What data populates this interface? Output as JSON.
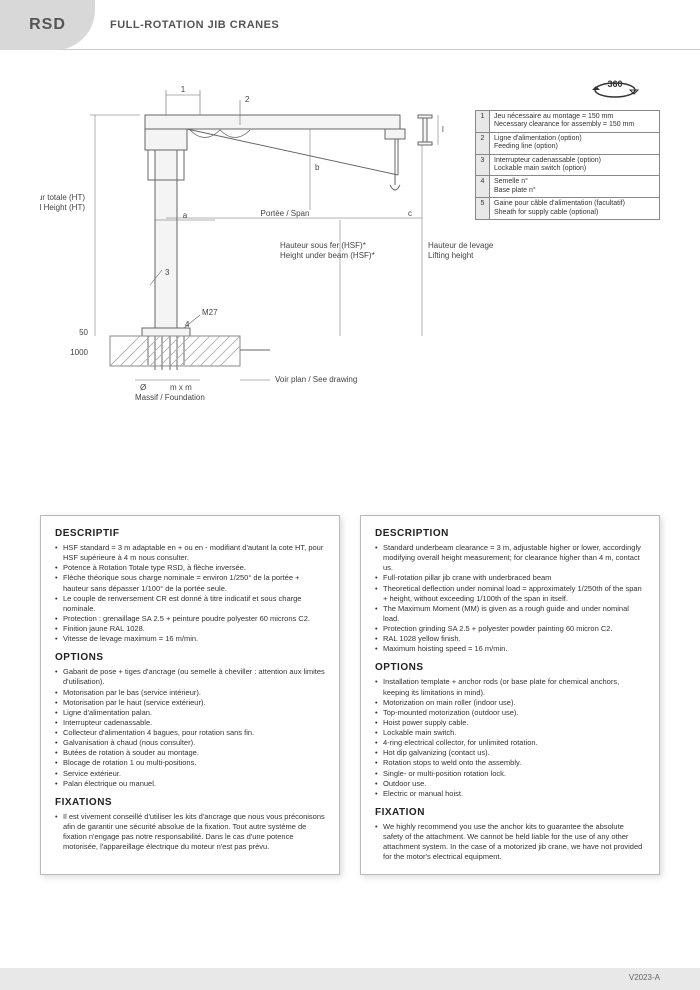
{
  "header": {
    "code": "RSD",
    "title": "FULL-ROTATION JIB CRANES"
  },
  "rotation_deg": "360",
  "diagram": {
    "labels": {
      "overall_height_fr": "Hauteur totale (HT)",
      "overall_height_en": "Overall Height (HT)",
      "span_fr": "Portée / Span",
      "hsf_fr": "Hauteur sous fer (HSF)*",
      "hsf_en": "Height under beam (HSF)*",
      "lift_fr": "Hauteur de levage",
      "lift_en": "Lifting height",
      "foundation": "Massif / Foundation",
      "see_drawing": "Voir plan / See drawing",
      "dim_50": "50",
      "dim_1000": "1000",
      "bolt": "M27",
      "sym_diam": "Ø",
      "sym_mxm": "m x m",
      "a": "a",
      "b": "b",
      "c": "c",
      "l": "l",
      "n1": "1",
      "n2": "2",
      "n3": "3",
      "n4": "4"
    },
    "colors": {
      "stroke": "#666666",
      "fill_light": "#f4f4f4",
      "hatch": "#888888"
    }
  },
  "callouts": [
    {
      "n": "1",
      "fr": "Jeu nécessaire au montage = 150 mm",
      "en": "Necessary clearance for assembly = 150 mm"
    },
    {
      "n": "2",
      "fr": "Ligne d'alimentation (option)",
      "en": "Feeding line (option)"
    },
    {
      "n": "3",
      "fr": "Interrupteur cadenassable (option)",
      "en": "Lockable main switch (option)"
    },
    {
      "n": "4",
      "fr": "Semelle n°",
      "en": "Base plate n°"
    },
    {
      "n": "5",
      "fr": "Gaine pour câble d'alimentation (facultatif)",
      "en": "Sheath for supply cable (optional)"
    }
  ],
  "left": {
    "descriptif_heading": "DESCRIPTIF",
    "descriptif": [
      "HSF standard = 3 m adaptable en + ou en - modifiant d'autant la cote HT, pour HSF supérieure à 4 m nous consulter.",
      "Potence à Rotation Totale type RSD, à flèche inversée.",
      "Flèche théorique sous charge nominale = environ 1/250° de la portée + hauteur sans dépasser 1/100° de la portée seule.",
      "Le couple de renversement CR est donné à titre indicatif et sous charge nominale.",
      "Protection : grenaillage SA 2.5 + peinture poudre polyester 60 microns C2.",
      "Finition jaune RAL 1028.",
      "Vitesse de levage maximum = 16 m/min."
    ],
    "options_heading": "OPTIONS",
    "options": [
      "Gabarit de pose + tiges d'ancrage (ou semelle à cheviller : attention aux limites d'utilisation).",
      "Motorisation par le bas (service intérieur).",
      "Motorisation par le haut (service extérieur).",
      "Ligne d'alimentation palan.",
      "Interrupteur cadenassable.",
      "Collecteur d'alimentation 4 bagues, pour rotation sans fin.",
      "Galvanisation à chaud (nous consulter).",
      "Butées de rotation à souder au montage.",
      "Blocage de rotation 1 ou multi-positions.",
      "Service extérieur.",
      "Palan électrique ou manuel."
    ],
    "fixations_heading": "FIXATIONS",
    "fixations": "Il est vivement conseillé d'utiliser les kits d'ancrage que nous vous préconisons afin de garantir une sécurité absolue de la fixation. Tout autre système de fixation n'engage pas notre responsabilité. Dans le cas d'une potence motorisée, l'appareillage électrique du moteur n'est pas prévu."
  },
  "right": {
    "description_heading": "DESCRIPTION",
    "description": [
      "Standard underbeam clearance = 3 m, adjustable higher or lower, accordingly modifying overall height measurement; for clearance higher than 4 m, contact us.",
      "Full-rotation pillar jib crane with underbraced beam",
      "Theoretical deflection under nominal load = approximately 1/250th of the span + height, without exceeding 1/100th of the span in itself.",
      "The Maximum Moment (MM) is given as a rough guide and under nominal load.",
      "Protection grinding SA 2.5 + polyester powder painting 60 micron C2.",
      "RAL 1028 yellow finish.",
      "Maximum hoisting speed = 16 m/min."
    ],
    "options_heading": "OPTIONS",
    "options": [
      "Installation template + anchor rods (or base plate for chemical anchors, keeping its limitations in mind).",
      "Motorization on main roller (indoor use).",
      "Top-mounted motorization (outdoor use).",
      "Hoist power supply cable.",
      "Lockable main switch.",
      "4-ring electrical collector, for unlimited rotation.",
      "Hot dip galvanizing (contact us).",
      "Rotation stops to weld onto the assembly.",
      "Single- or multi-position rotation lock.",
      "Outdoor use.",
      "Electric or manual hoist."
    ],
    "fixation_heading": "FIXATION",
    "fixation": "We highly recommend you use the anchor kits to guarantee the absolute safety of the attachment. We cannot be held liable for the use of any other attachment system. In the case of a motorized jib crane, we have not provided for the motor's electrical equipment."
  },
  "footer_version": "V2023-A"
}
